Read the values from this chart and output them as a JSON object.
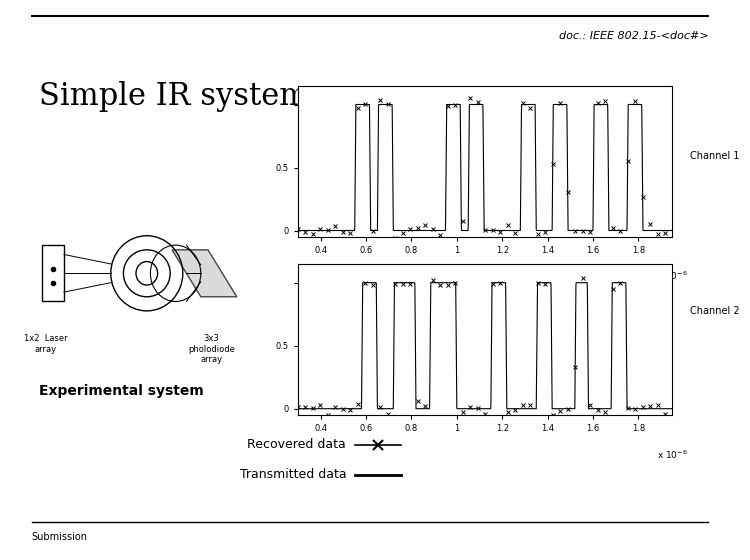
{
  "title": "Simple IR system",
  "header_text": "doc.: IEEE 802.15-<doc#>",
  "footer_text": "Submission",
  "subtitle": "Experimental system",
  "channel1_label": "Channel 1",
  "channel2_label": "Channel 2",
  "legend_recovered": "Recovered data",
  "legend_transmitted": "Transmitted data",
  "laser_label": "1x2  Laser\narray",
  "photodiode_label": "3x3\npholodiode\narray",
  "bg_color": "#ffffff",
  "text_color": "#000000",
  "noise_level": 0.02
}
